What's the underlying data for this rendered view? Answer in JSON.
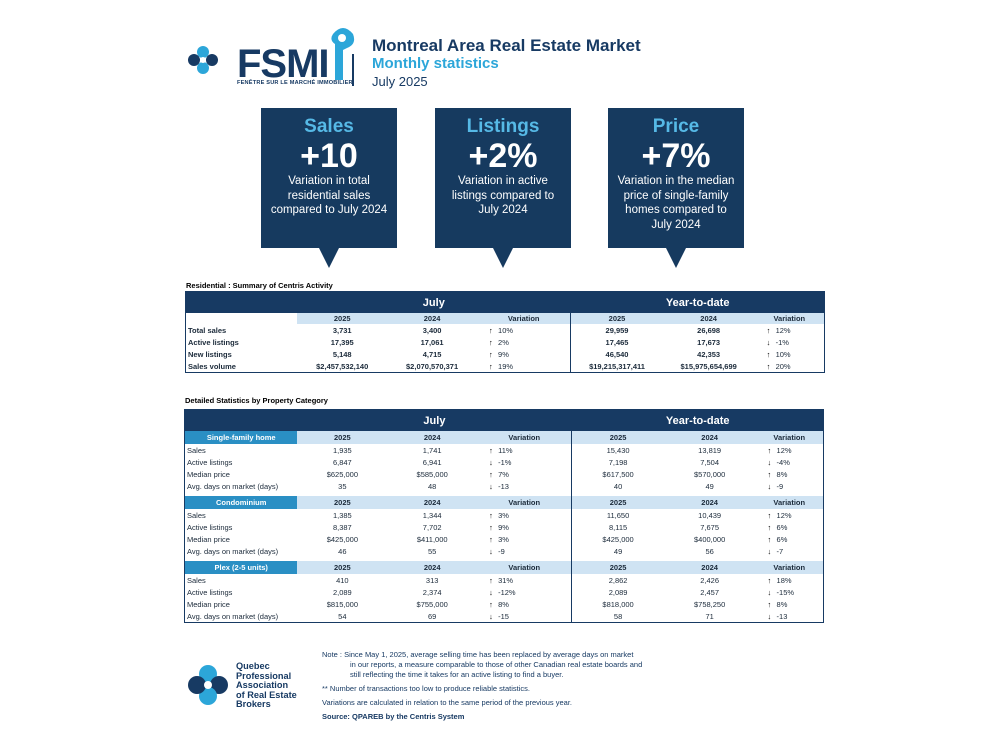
{
  "header": {
    "logo_text": "FSMI",
    "logo_tagline": "FENÊTRE SUR LE MARCHÉ IMMOBILIER",
    "title": "Montreal Area Real Estate Market",
    "subtitle": "Monthly statistics",
    "date": "July 2025"
  },
  "kpis": [
    {
      "title": "Sales",
      "value": "+10",
      "desc": "Variation in total residential sales compared to July 2024"
    },
    {
      "title": "Listings",
      "value": "+2%",
      "desc": "Variation in active listings compared to July 2024"
    },
    {
      "title": "Price",
      "value": "+7%",
      "desc": "Variation in the median price of single-family homes compared to July 2024"
    }
  ],
  "summary": {
    "title": "Residential : Summary of Centris Activity",
    "period1": "July",
    "period2": "Year-to-date",
    "col_y1": "2025",
    "col_y2": "2024",
    "col_var": "Variation",
    "rows": [
      {
        "label": "Total sales",
        "a": "3,731",
        "b": "3,400",
        "v": "10%",
        "d": "↑",
        "c": "29,959",
        "e": "26,698",
        "w": "12%",
        "d2": "↑"
      },
      {
        "label": "Active listings",
        "a": "17,395",
        "b": "17,061",
        "v": "2%",
        "d": "↑",
        "c": "17,465",
        "e": "17,673",
        "w": "-1%",
        "d2": "↓"
      },
      {
        "label": "New listings",
        "a": "5,148",
        "b": "4,715",
        "v": "9%",
        "d": "↑",
        "c": "46,540",
        "e": "42,353",
        "w": "10%",
        "d2": "↑"
      },
      {
        "label": "Sales volume",
        "a": "$2,457,532,140",
        "b": "$2,070,570,371",
        "v": "19%",
        "d": "↑",
        "c": "$19,215,317,411",
        "e": "$15,975,654,699",
        "w": "20%",
        "d2": "↑"
      }
    ]
  },
  "detail": {
    "title": "Detailed Statistics by Property Category",
    "period1": "July",
    "period2": "Year-to-date",
    "col_y1": "2025",
    "col_y2": "2024",
    "col_var": "Variation",
    "categories": [
      {
        "name": "Single-family home",
        "rows": [
          {
            "label": "Sales",
            "a": "1,935",
            "b": "1,741",
            "v": "11%",
            "d": "↑",
            "c": "15,430",
            "e": "13,819",
            "w": "12%",
            "d2": "↑"
          },
          {
            "label": "Active listings",
            "a": "6,847",
            "b": "6,941",
            "v": "-1%",
            "d": "↓",
            "c": "7,198",
            "e": "7,504",
            "w": "-4%",
            "d2": "↓"
          },
          {
            "label": "Median price",
            "a": "$625,000",
            "b": "$585,000",
            "v": "7%",
            "d": "↑",
            "c": "$617,500",
            "e": "$570,000",
            "w": "8%",
            "d2": "↑"
          },
          {
            "label": "Avg. days on market (days)",
            "a": "35",
            "b": "48",
            "v": "-13",
            "d": "↓",
            "c": "40",
            "e": "49",
            "w": "-9",
            "d2": "↓"
          }
        ]
      },
      {
        "name": "Condominium",
        "rows": [
          {
            "label": "Sales",
            "a": "1,385",
            "b": "1,344",
            "v": "3%",
            "d": "↑",
            "c": "11,650",
            "e": "10,439",
            "w": "12%",
            "d2": "↑"
          },
          {
            "label": "Active listings",
            "a": "8,387",
            "b": "7,702",
            "v": "9%",
            "d": "↑",
            "c": "8,115",
            "e": "7,675",
            "w": "6%",
            "d2": "↑"
          },
          {
            "label": "Median price",
            "a": "$425,000",
            "b": "$411,000",
            "v": "3%",
            "d": "↑",
            "c": "$425,000",
            "e": "$400,000",
            "w": "6%",
            "d2": "↑"
          },
          {
            "label": "Avg. days on market (days)",
            "a": "46",
            "b": "55",
            "v": "-9",
            "d": "↓",
            "c": "49",
            "e": "56",
            "w": "-7",
            "d2": "↓"
          }
        ]
      },
      {
        "name": "Plex (2-5 units)",
        "rows": [
          {
            "label": "Sales",
            "a": "410",
            "b": "313",
            "v": "31%",
            "d": "↑",
            "c": "2,862",
            "e": "2,426",
            "w": "18%",
            "d2": "↑"
          },
          {
            "label": "Active listings",
            "a": "2,089",
            "b": "2,374",
            "v": "-12%",
            "d": "↓",
            "c": "2,089",
            "e": "2,457",
            "w": "-15%",
            "d2": "↓"
          },
          {
            "label": "Median price",
            "a": "$815,000",
            "b": "$755,000",
            "v": "8%",
            "d": "↑",
            "c": "$818,000",
            "e": "$758,250",
            "w": "8%",
            "d2": "↑"
          },
          {
            "label": "Avg. days on market (days)",
            "a": "54",
            "b": "69",
            "v": "-15",
            "d": "↓",
            "c": "58",
            "e": "71",
            "w": "-13",
            "d2": "↓"
          }
        ]
      }
    ]
  },
  "footer": {
    "org_line1": "Quebec",
    "org_line2": "Professional",
    "org_line3": "Association",
    "org_line4": "of Real Estate",
    "org_line5": "Brokers",
    "note1_a": "Note : Since May 1, 2025, average selling time has been replaced by average days on market",
    "note1_b": "in our reports, a measure comparable to those of other Canadian real estate boards and",
    "note1_c": "still reflecting the time it takes for an active listing to find a buyer.",
    "note2": "**  Number of transactions too low to produce reliable statistics.",
    "note3": "Variations are calculated in relation to the same period of the previous year.",
    "source": "Source: QPAREB by the Centris System"
  },
  "colors": {
    "navy": "#173a63",
    "light_blue": "#2ca6d9",
    "cat_blue": "#2a8fc4",
    "sub_bg": "#cfe3f3"
  }
}
